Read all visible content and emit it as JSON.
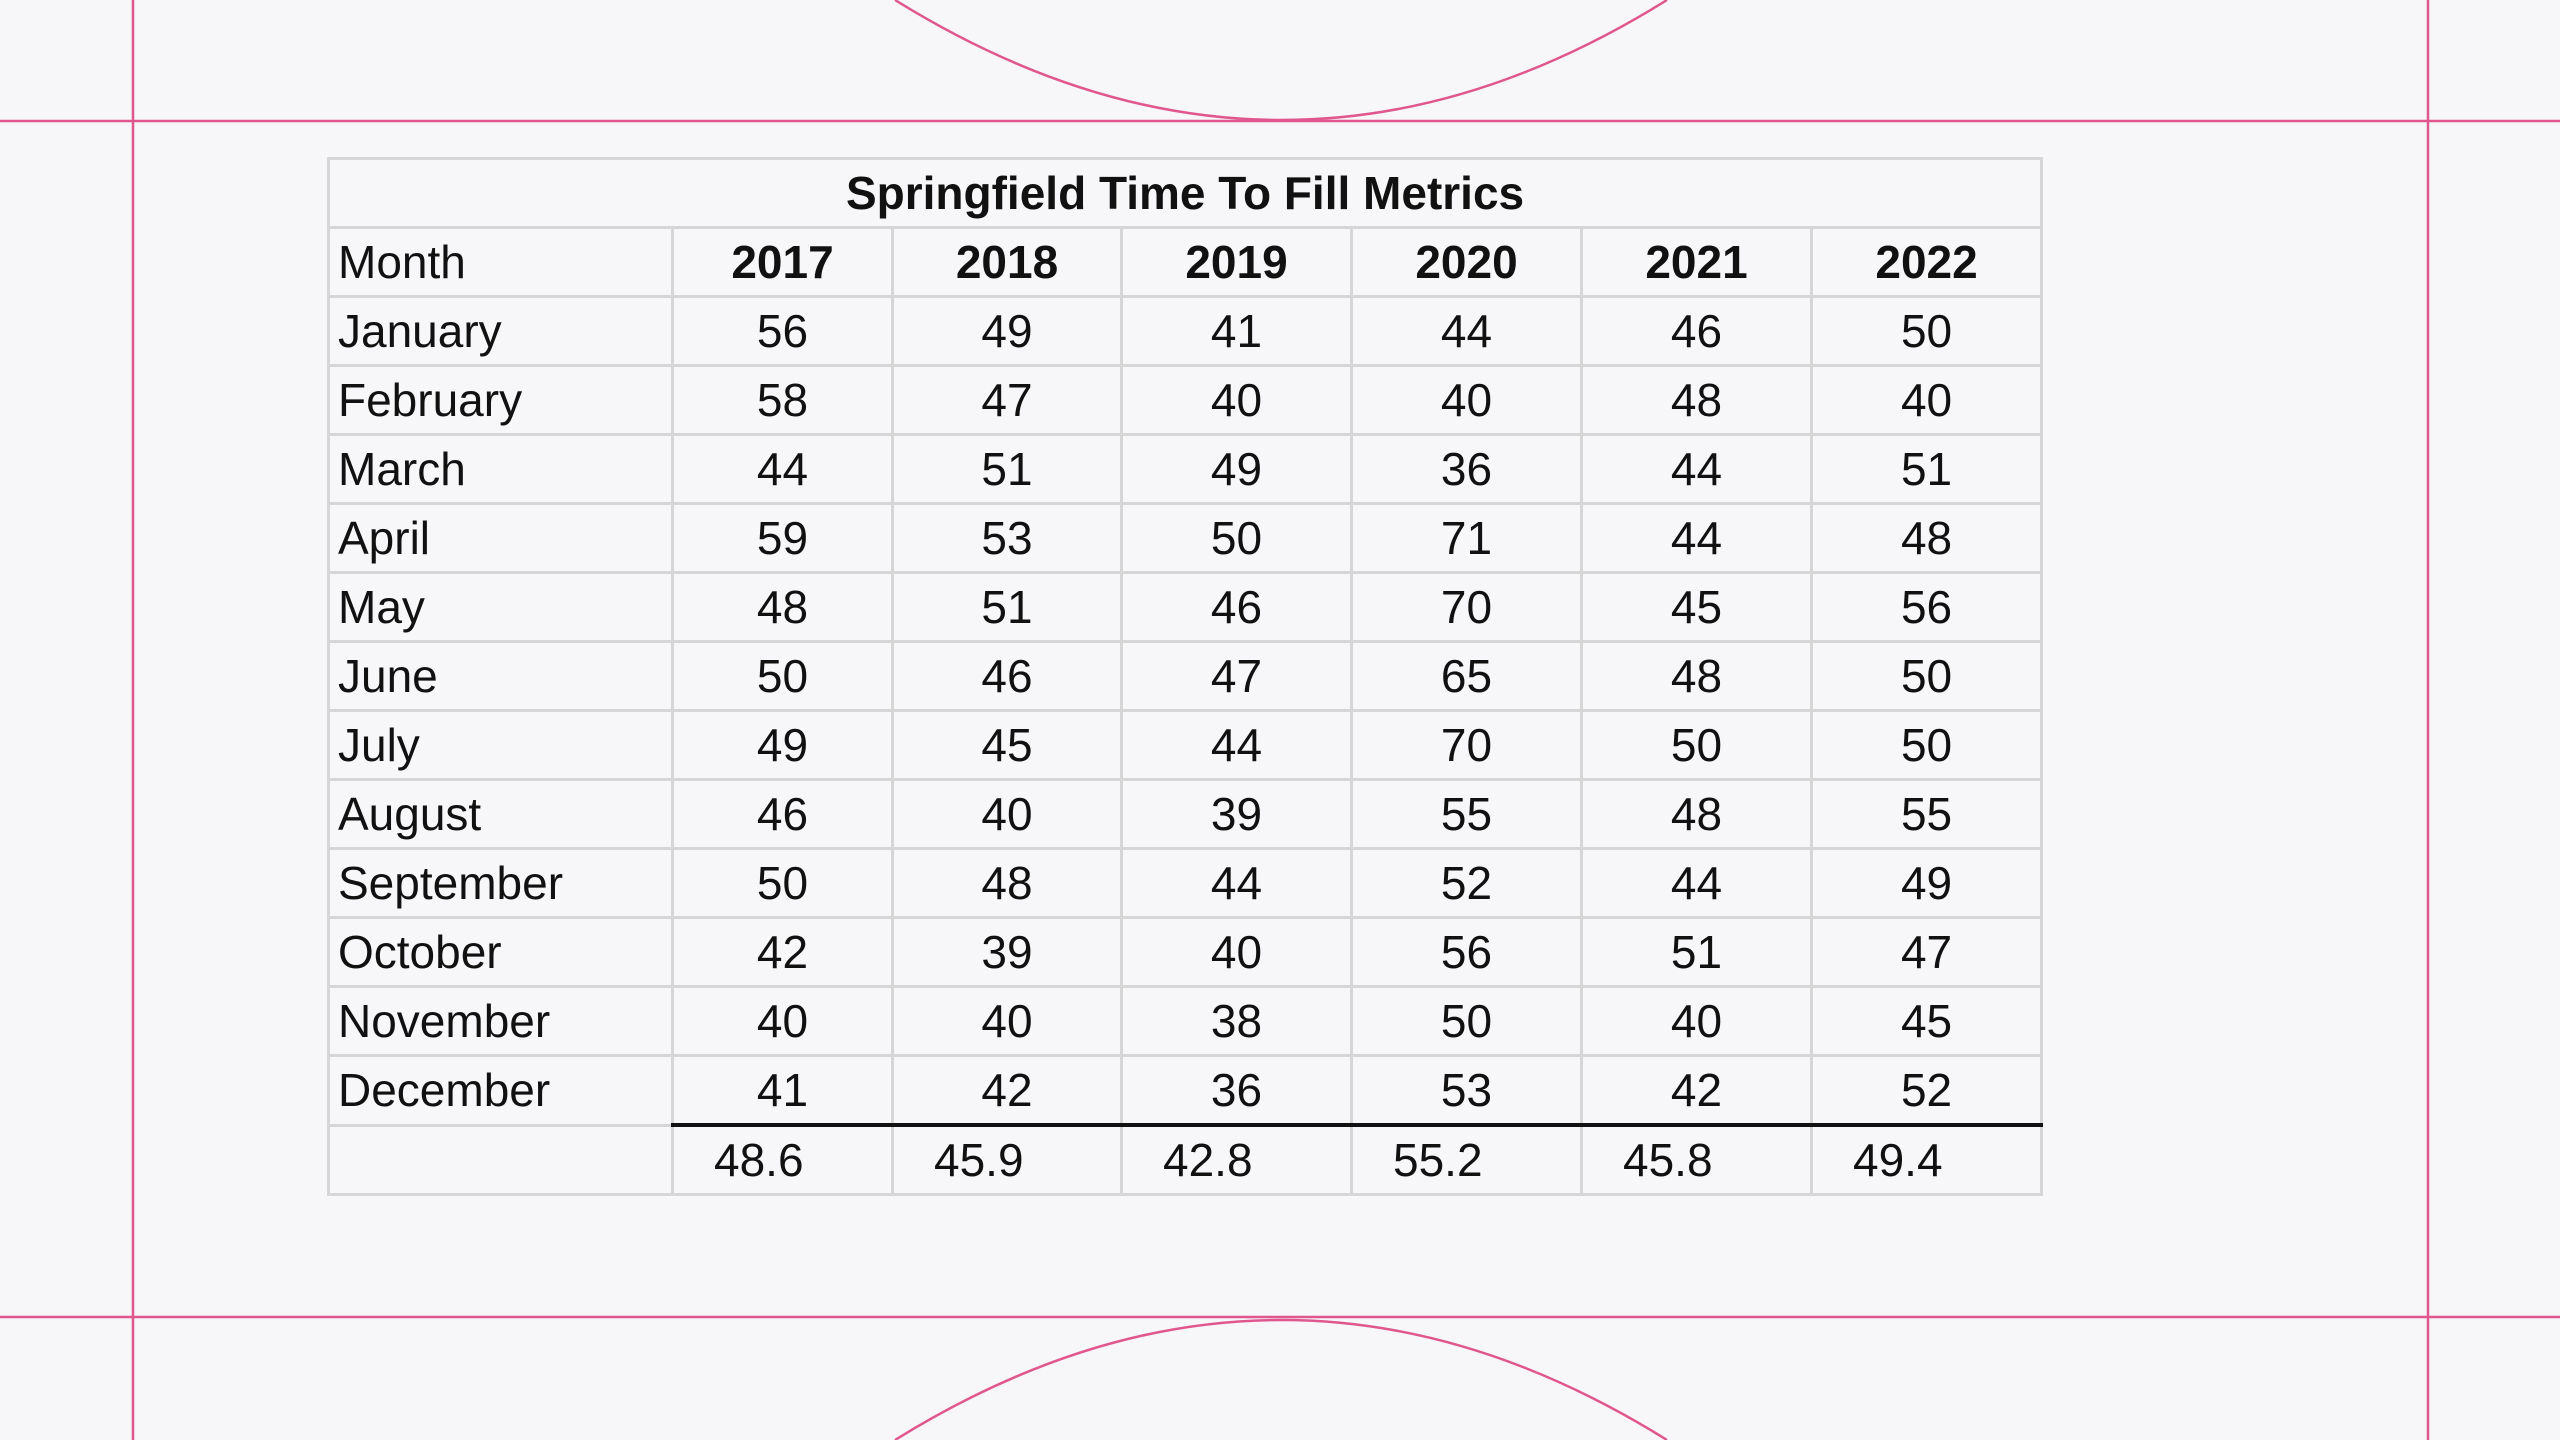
{
  "table": {
    "title": "Springfield Time To Fill Metrics",
    "month_header": "Month",
    "years": [
      "2017",
      "2018",
      "2019",
      "2020",
      "2021",
      "2022"
    ],
    "rows": [
      {
        "month": "January",
        "values": [
          "56",
          "49",
          "41",
          "44",
          "46",
          "50"
        ]
      },
      {
        "month": "February",
        "values": [
          "58",
          "47",
          "40",
          "40",
          "48",
          "40"
        ]
      },
      {
        "month": "March",
        "values": [
          "44",
          "51",
          "49",
          "36",
          "44",
          "51"
        ]
      },
      {
        "month": "April",
        "values": [
          "59",
          "53",
          "50",
          "71",
          "44",
          "48"
        ]
      },
      {
        "month": "May",
        "values": [
          "48",
          "51",
          "46",
          "70",
          "45",
          "56"
        ]
      },
      {
        "month": "June",
        "values": [
          "50",
          "46",
          "47",
          "65",
          "48",
          "50"
        ]
      },
      {
        "month": "July",
        "values": [
          "49",
          "45",
          "44",
          "70",
          "50",
          "50"
        ]
      },
      {
        "month": "August",
        "values": [
          "46",
          "40",
          "39",
          "55",
          "48",
          "55"
        ]
      },
      {
        "month": "September",
        "values": [
          "50",
          "48",
          "44",
          "52",
          "44",
          "49"
        ]
      },
      {
        "month": "October",
        "values": [
          "42",
          "39",
          "40",
          "56",
          "51",
          "47"
        ]
      },
      {
        "month": "November",
        "values": [
          "40",
          "40",
          "38",
          "50",
          "40",
          "45"
        ]
      },
      {
        "month": "December",
        "values": [
          "41",
          "42",
          "36",
          "53",
          "42",
          "52"
        ]
      }
    ],
    "averages_label": "",
    "averages": [
      "48.6",
      "45.9",
      "42.8",
      "55.2",
      "45.8",
      "49.4"
    ]
  },
  "colors": {
    "guide": "#e0578e",
    "background": "#f7f7f9",
    "grid": "#d6d6d6"
  }
}
